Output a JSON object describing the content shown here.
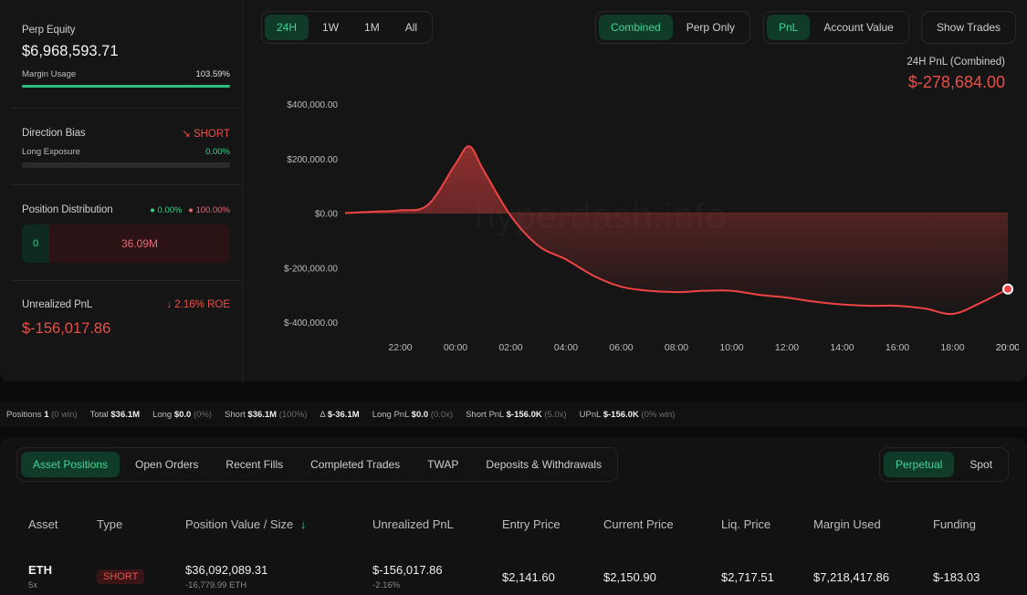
{
  "left": {
    "perp_equity_label": "Perp Equity",
    "perp_equity_value": "$6,968,593.71",
    "margin_usage_label": "Margin Usage",
    "margin_usage_value": "103.59%",
    "margin_usage_fraction": 1.0,
    "direction_bias_label": "Direction Bias",
    "direction_bias_value": "SHORT",
    "direction_bias_icon": "trend-down-icon",
    "long_exposure_label": "Long Exposure",
    "long_exposure_value": "0.00%",
    "long_exposure_fraction": 0.0,
    "position_distribution_label": "Position Distribution",
    "dist_long_pct": "0.00%",
    "dist_short_pct": "100.00%",
    "dist_long_value": "0",
    "dist_short_value": "36.09M",
    "unrealized_pnl_label": "Unrealized PnL",
    "roe_value": "2.16% ROE",
    "roe_icon": "arrow-down-icon",
    "unrealized_pnl_value": "$-156,017.86"
  },
  "range_tabs": [
    "24H",
    "1W",
    "1M",
    "All"
  ],
  "range_active": 0,
  "view_tabs": [
    "Combined",
    "Perp Only"
  ],
  "view_active": 0,
  "metric_tabs": [
    "PnL",
    "Account Value"
  ],
  "metric_active": 0,
  "show_trades_label": "Show Trades",
  "pnl_title": "24H PnL (Combined)",
  "pnl_value": "$-278,684.00",
  "watermark": "hyperdash.info",
  "chart_data": {
    "type": "area",
    "x": [
      "20:00",
      "21:00",
      "22:00",
      "23:00",
      "00:00",
      "00:30",
      "01:00",
      "02:00",
      "03:00",
      "04:00",
      "05:00",
      "06:00",
      "07:00",
      "08:00",
      "09:00",
      "10:00",
      "11:00",
      "12:00",
      "13:00",
      "14:00",
      "15:00",
      "16:00",
      "17:00",
      "18:00",
      "19:00",
      "20:00"
    ],
    "values": [
      0,
      5000,
      10000,
      30000,
      180000,
      245000,
      160000,
      -10000,
      -120000,
      -170000,
      -230000,
      -270000,
      -285000,
      -290000,
      -285000,
      -285000,
      -300000,
      -310000,
      -325000,
      -335000,
      -340000,
      -340000,
      -350000,
      -370000,
      -330000,
      -278684
    ],
    "x_ticks": [
      "20:00",
      "22:00",
      "00:00",
      "02:00",
      "04:00",
      "06:00",
      "08:00",
      "10:00",
      "12:00",
      "14:00",
      "16:00",
      "18:00",
      "20:00"
    ],
    "y_ticks": [
      "$400,000.00",
      "$200,000.00",
      "$0.00",
      "$-200,000.00",
      "$-400,000.00"
    ],
    "y_tick_values": [
      400000,
      200000,
      0,
      -200000,
      -400000
    ],
    "ylim": [
      -400000,
      400000
    ],
    "grid": false,
    "line_color": "#ef4444"
  },
  "stats": {
    "positions_label": "Positions",
    "positions_value": "1",
    "positions_note": "(0 win)",
    "total_label": "Total",
    "total_value": "$36.1M",
    "long_label": "Long",
    "long_value": "$0.0",
    "long_note": "(0%)",
    "short_label": "Short",
    "short_value": "$36.1M",
    "short_note": "(100%)",
    "delta_label": "Δ",
    "delta_value": "$-36.1M",
    "long_pnl_label": "Long PnL",
    "long_pnl_value": "$0.0",
    "long_pnl_note": "(0.0x)",
    "short_pnl_label": "Short PnL",
    "short_pnl_value": "$-156.0K",
    "short_pnl_note": "(5.0x)",
    "upnl_label": "UPnL",
    "upnl_value": "$-156.0K",
    "upnl_note": "(0% win)"
  },
  "bottom_tabs": [
    "Asset Positions",
    "Open Orders",
    "Recent Fills",
    "Completed Trades",
    "TWAP",
    "Deposits & Withdrawals"
  ],
  "bottom_active": 0,
  "market_tabs": [
    "Perpetual",
    "Spot"
  ],
  "market_active": 0,
  "table": {
    "headers": [
      "Asset",
      "Type",
      "Position Value / Size",
      "Unrealized PnL",
      "Entry Price",
      "Current Price",
      "Liq. Price",
      "Margin Used",
      "Funding"
    ],
    "sort_icon": "arrow-down-icon",
    "rows": [
      {
        "asset": "ETH",
        "leverage": "5x",
        "type": "SHORT",
        "position_value": "$36,092,089.31",
        "size": "-16,779.99 ETH",
        "unrealized_pnl": "$-156,017.86",
        "roe": "-2.16%",
        "entry_price": "$2,141.60",
        "current_price": "$2,150.90",
        "liq_price": "$2,717.51",
        "margin_used": "$7,218,417.86",
        "funding": "$-183.03"
      }
    ]
  }
}
